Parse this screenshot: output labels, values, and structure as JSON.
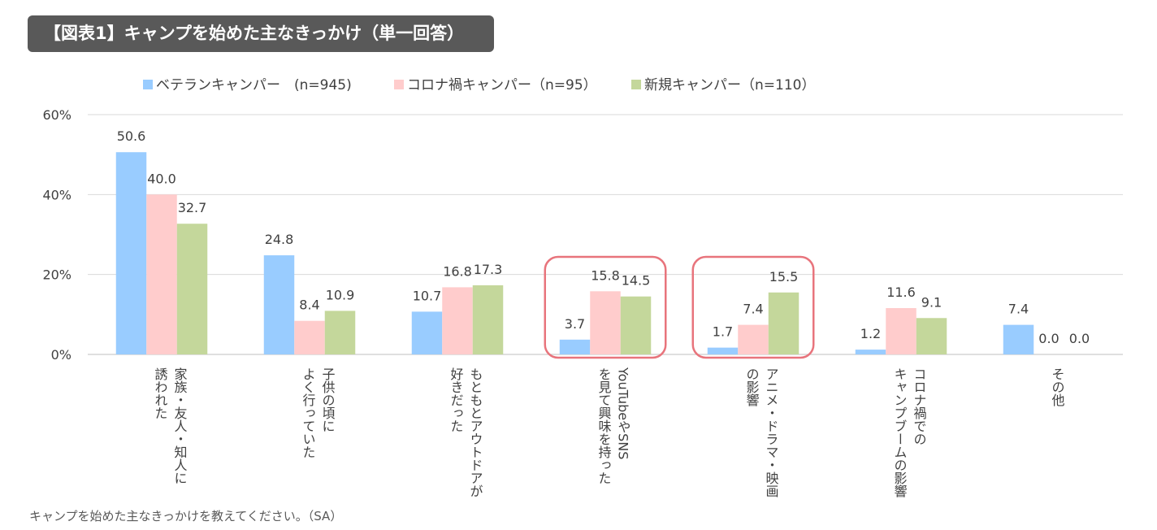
{
  "title": "【図表1】キャンプを始めた主なきっかけ（単一回答）",
  "footnote": "キャンプを始めた主なきっかけを教えてください。（SA）",
  "chart_data": {
    "type": "bar",
    "title": "【図表1】キャンプを始めた主なきっかけ（単一回答）",
    "xlabel": "",
    "ylabel": "",
    "ylim": [
      0,
      60
    ],
    "yticks": [
      0,
      20,
      40,
      60
    ],
    "ytick_labels": [
      "0%",
      "20%",
      "40%",
      "60%"
    ],
    "grid": true,
    "legend_position": "top-left",
    "categories": [
      "家族・友人・知人に誘われた",
      "子供の頃によく行っていた",
      "もともとアウトドアが好きだった",
      "YouTubeやSNSを見て興味を持った",
      "アニメ・ドラマ・映画の影響",
      "コロナ禍でのキャンプブームの影響",
      "その他"
    ],
    "category_label_lines": [
      [
        "家族・友人・知人に",
        "誘われた"
      ],
      [
        "子供の頃に",
        "よく行っていた"
      ],
      [
        "もともとアウトドアが",
        "好きだった"
      ],
      [
        "YouTubeやSNS",
        "を見て興味を持った"
      ],
      [
        "アニメ・ドラマ・映画",
        "の影響"
      ],
      [
        "コロナ禍での",
        "キャンプブームの影響"
      ],
      [
        "その他"
      ]
    ],
    "series": [
      {
        "name": "ベテランキャンパー　(n=945)",
        "color": "#99CCFF",
        "values": [
          50.6,
          24.8,
          10.7,
          3.7,
          1.7,
          1.2,
          7.4
        ]
      },
      {
        "name": "コロナ禍キャンパー（n=95）",
        "color": "#FFCCCC",
        "values": [
          40.0,
          8.4,
          16.8,
          15.8,
          7.4,
          11.6,
          0.0
        ]
      },
      {
        "name": "新規キャンパー（n=110）",
        "color": "#C4D79B",
        "values": [
          32.7,
          10.9,
          17.3,
          14.5,
          15.5,
          9.1,
          0.0
        ]
      }
    ],
    "data_labels": [
      [
        "50.6",
        "24.8",
        "10.7",
        "3.7",
        "1.7",
        "1.2",
        "7.4"
      ],
      [
        "40.0",
        "8.4",
        "16.8",
        "15.8",
        "7.4",
        "11.6",
        "0.0"
      ],
      [
        "32.7",
        "10.9",
        "17.3",
        "14.5",
        "15.5",
        "9.1",
        "0.0"
      ]
    ],
    "highlighted_categories": [
      3,
      4
    ],
    "highlight_color": "#E8747C"
  }
}
